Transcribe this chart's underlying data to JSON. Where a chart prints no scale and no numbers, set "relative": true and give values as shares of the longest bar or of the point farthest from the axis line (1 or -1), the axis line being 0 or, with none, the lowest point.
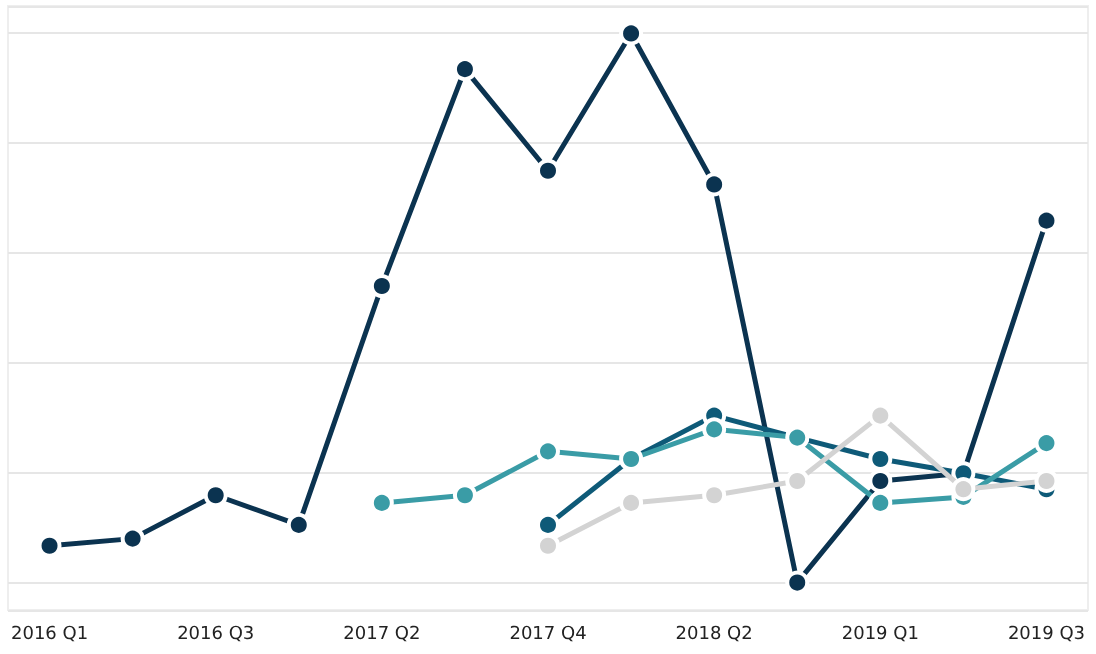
{
  "chart_data": {
    "type": "line",
    "relative": true,
    "grid": "y",
    "marker": "circle",
    "line_style": "solid",
    "categories": [
      "2016 Q1",
      null,
      "2016 Q3",
      null,
      "2017 Q2",
      null,
      "2017 Q4",
      null,
      "2018 Q2",
      null,
      "2019 Q1",
      null,
      "2019 Q3"
    ],
    "series": [
      {
        "color": "#0b3350",
        "values": [
          0.067,
          0.08,
          0.159,
          0.105,
          0.54,
          0.935,
          0.75,
          1,
          0.725,
          0,
          0.185,
          0.199,
          0.659
        ]
      },
      {
        "color": "#0e5a78",
        "values": [
          null,
          null,
          null,
          null,
          null,
          null,
          0.105,
          0.225,
          0.304,
          0.264,
          0.225,
          0.199,
          0.17
        ]
      },
      {
        "color": "#3a9ca6",
        "values": [
          null,
          null,
          null,
          null,
          0.145,
          0.159,
          0.239,
          0.225,
          0.279,
          0.264,
          0.145,
          0.156,
          0.254
        ]
      },
      {
        "color": "#d3d3d3",
        "values": [
          null,
          null,
          null,
          null,
          null,
          null,
          0.067,
          0.145,
          0.159,
          0.185,
          0.304,
          0.17,
          0.185
        ]
      }
    ]
  }
}
